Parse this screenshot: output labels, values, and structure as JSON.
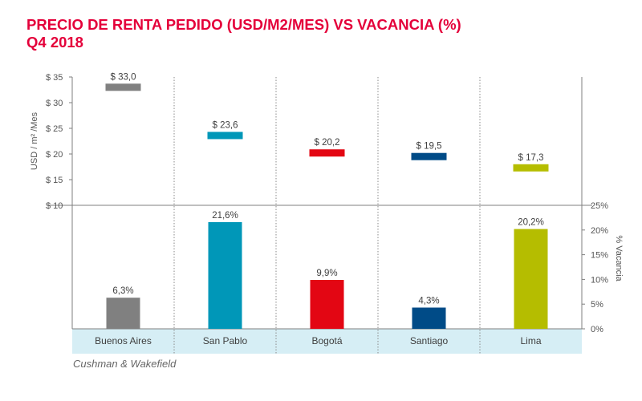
{
  "title_line1": "PRECIO DE RENTA PEDIDO (USD/M2/MES) VS VACANCIA (%)",
  "title_line2": "Q4 2018",
  "source": "Cushman & Wakefield",
  "chart_data": {
    "type": "bar",
    "categories": [
      "Buenos Aires",
      "San Pablo",
      "Bogotá",
      "Santiago",
      "Lima"
    ],
    "colors": [
      "#808080",
      "#0097b8",
      "#e30613",
      "#004b87",
      "#b5bd00"
    ],
    "category_band_color": "#d6eef5",
    "rent": {
      "type": "marker",
      "ylabel": "USD / m² /Mes",
      "ylim": [
        10,
        35
      ],
      "yticks": [
        10,
        15,
        20,
        25,
        30,
        35
      ],
      "ytick_labels": [
        "$ 10",
        "$ 15",
        "$ 20",
        "$ 25",
        "$ 30",
        "$ 35"
      ],
      "values": [
        33.0,
        23.6,
        20.2,
        19.5,
        17.3
      ],
      "labels": [
        "$ 33,0",
        "$ 23,6",
        "$ 20,2",
        "$ 19,5",
        "$ 17,3"
      ]
    },
    "vacancy": {
      "type": "bar",
      "ylabel": "% Vacancia",
      "ylim": [
        0,
        25
      ],
      "yticks": [
        0,
        5,
        10,
        15,
        20,
        25
      ],
      "ytick_labels": [
        "0%",
        "5%",
        "10%",
        "15%",
        "20%",
        "25%"
      ],
      "values": [
        6.3,
        21.6,
        9.9,
        4.3,
        20.2
      ],
      "labels": [
        "6,3%",
        "21,6%",
        "9,9%",
        "4,3%",
        "20,2%"
      ]
    }
  }
}
